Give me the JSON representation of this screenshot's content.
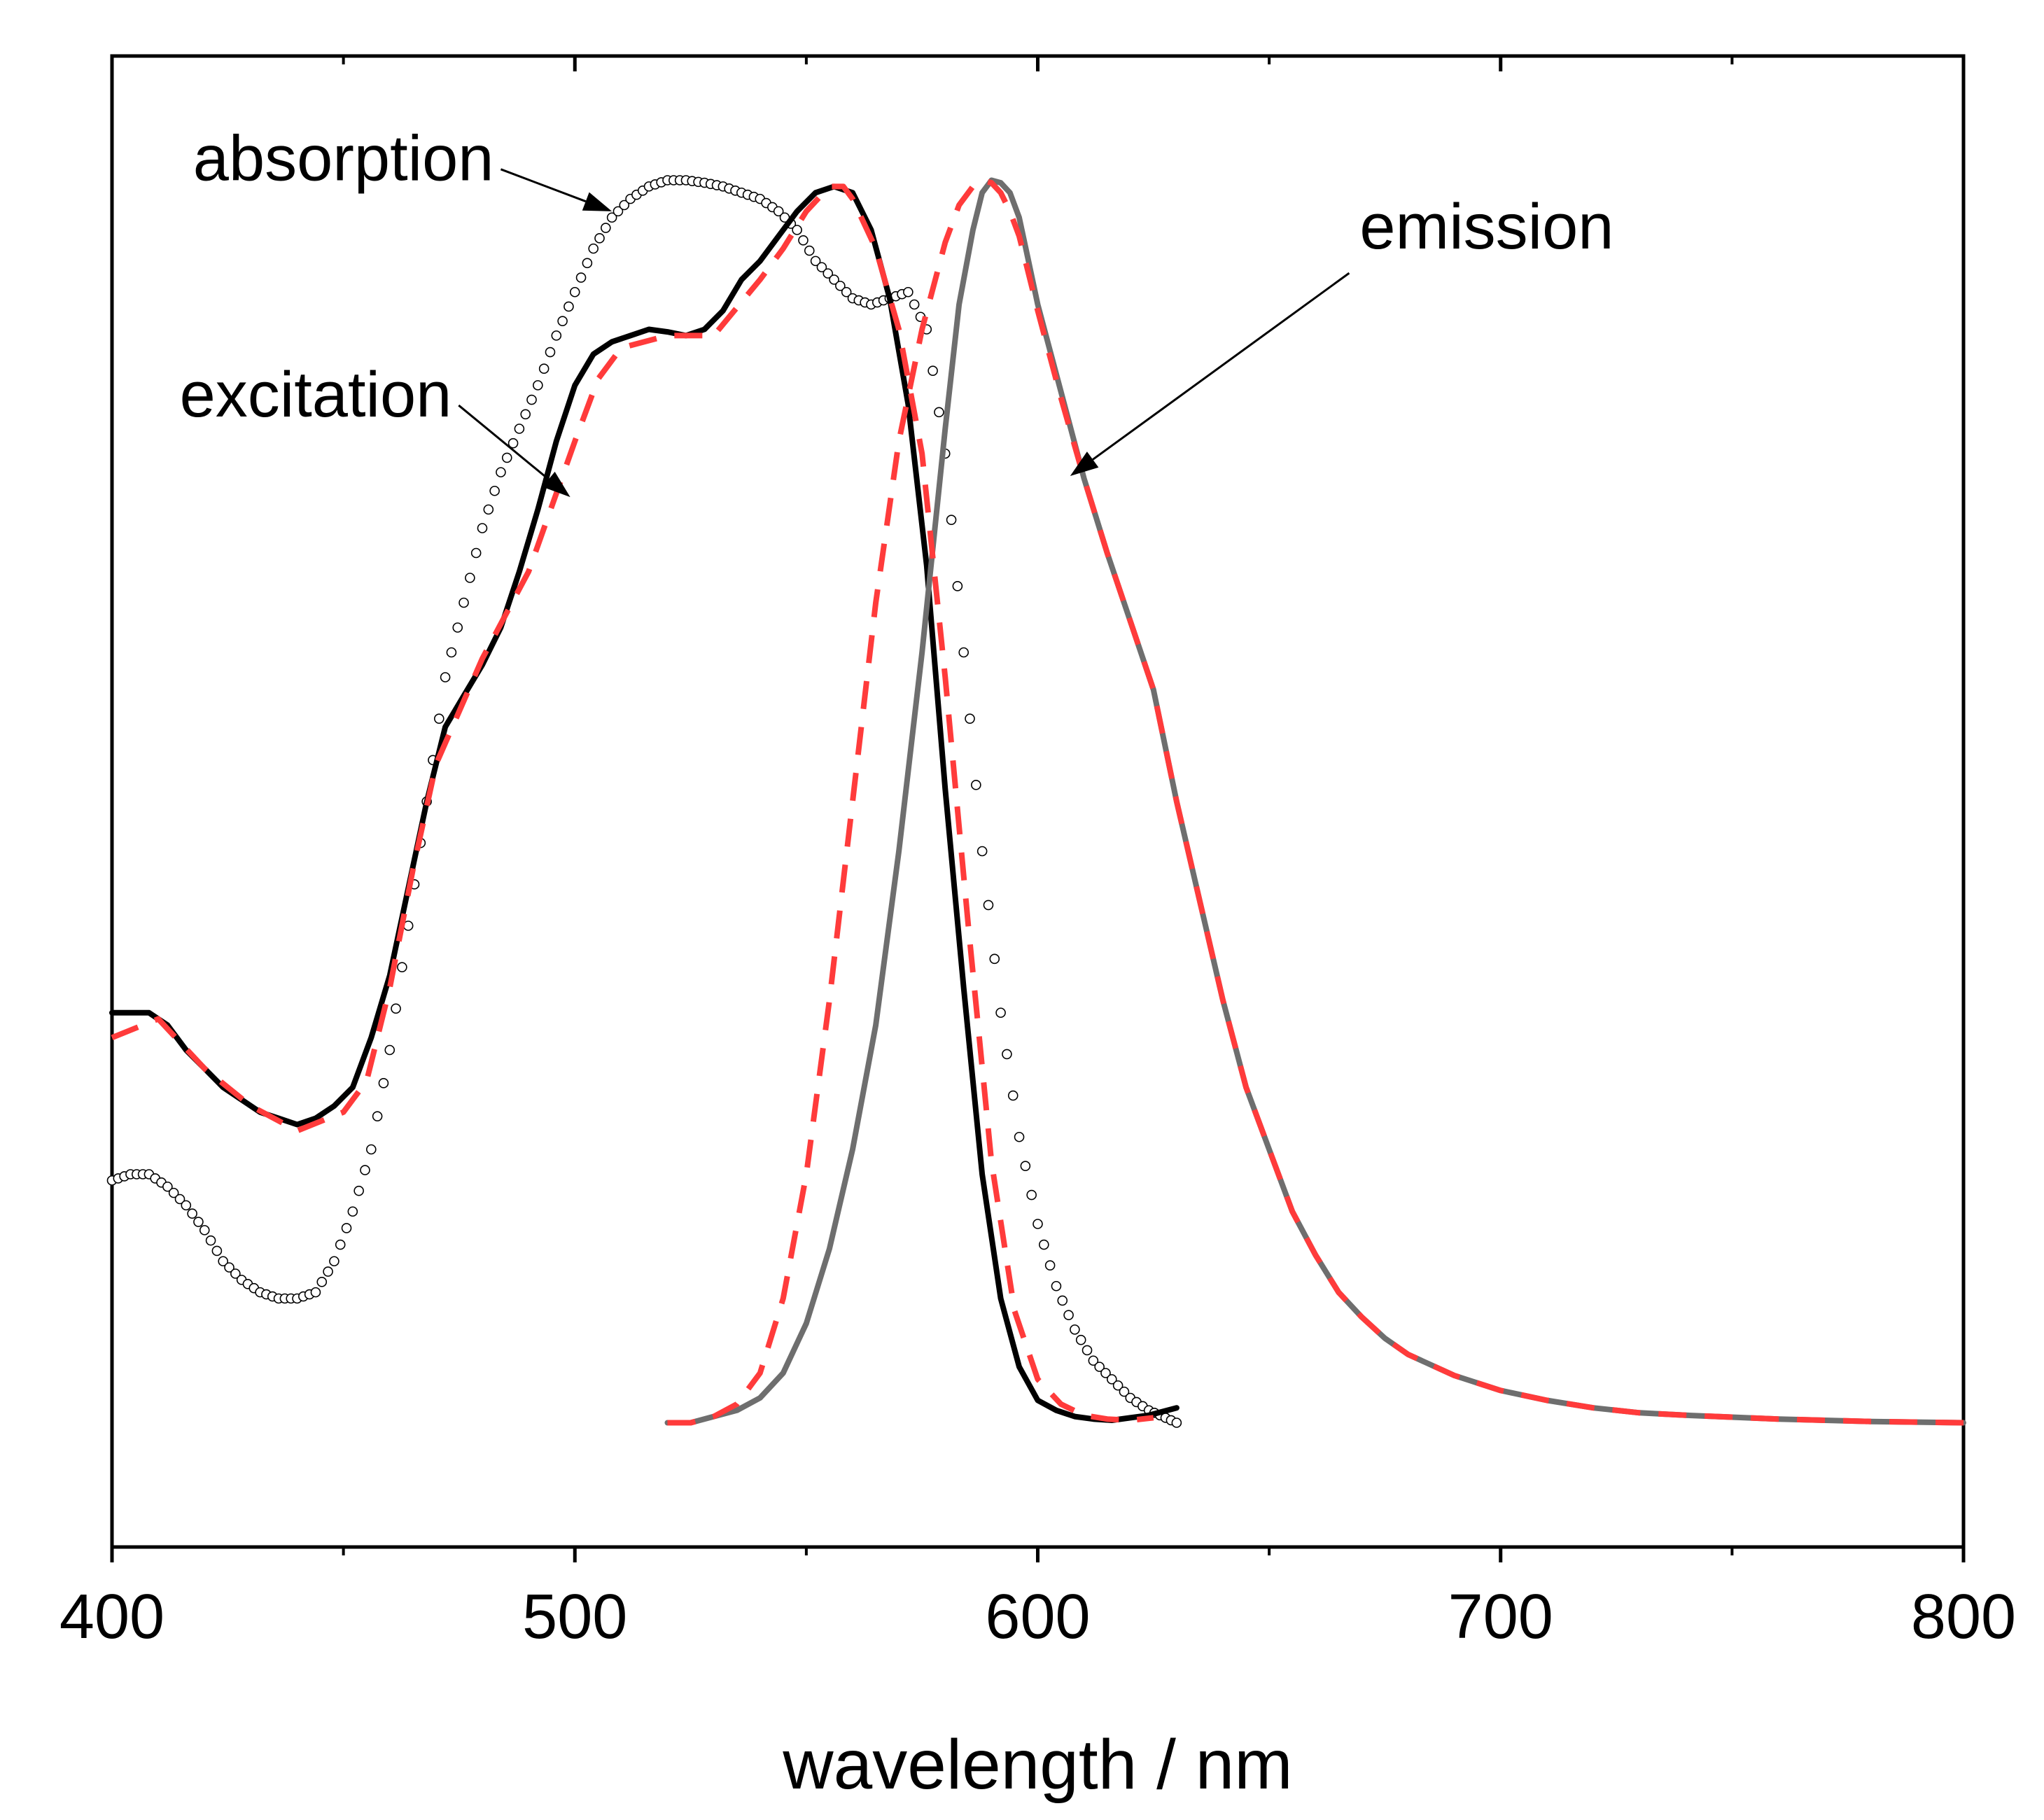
{
  "chart_data": {
    "type": "line",
    "xlabel": "wavelength / nm",
    "ylabel": "",
    "xlim": [
      400,
      800
    ],
    "ylim": [
      -0.1,
      1.1
    ],
    "x_ticks": [
      400,
      500,
      600,
      700,
      800
    ],
    "x_minor_ticks": [
      450,
      550,
      650,
      750
    ],
    "grid": false,
    "legend": "none",
    "annotations": [
      {
        "text": "absorption",
        "series": "absorption",
        "text_at": [
          450,
          1.0
        ],
        "arrow_to": [
          508,
          0.975
        ]
      },
      {
        "text": "excitation",
        "series": "excitation",
        "text_at": [
          444,
          0.81
        ],
        "arrow_to": [
          499,
          0.745
        ]
      },
      {
        "text": "emission",
        "series": "emission",
        "text_at": [
          697,
          0.945
        ],
        "arrow_to": [
          607,
          0.762
        ]
      }
    ],
    "series": [
      {
        "name": "absorption",
        "style": "open-circles",
        "color": "#000000",
        "x": [
          400,
          404,
          408,
          412,
          416,
          420,
          424,
          428,
          432,
          436,
          440,
          444,
          448,
          452,
          456,
          460,
          464,
          468,
          472,
          476,
          480,
          484,
          488,
          492,
          496,
          500,
          504,
          508,
          512,
          516,
          520,
          524,
          528,
          532,
          536,
          540,
          544,
          548,
          552,
          556,
          560,
          564,
          568,
          572,
          576,
          580,
          584,
          588,
          592,
          596,
          600,
          604,
          608,
          612,
          616,
          620,
          624,
          630
        ],
        "y": [
          0.195,
          0.2,
          0.2,
          0.19,
          0.175,
          0.155,
          0.13,
          0.115,
          0.105,
          0.1,
          0.1,
          0.105,
          0.13,
          0.17,
          0.22,
          0.3,
          0.4,
          0.5,
          0.6,
          0.66,
          0.72,
          0.765,
          0.8,
          0.835,
          0.875,
          0.91,
          0.945,
          0.97,
          0.985,
          0.995,
          1.0,
          1.0,
          0.998,
          0.995,
          0.99,
          0.985,
          0.975,
          0.96,
          0.935,
          0.92,
          0.905,
          0.9,
          0.905,
          0.91,
          0.88,
          0.78,
          0.62,
          0.46,
          0.33,
          0.23,
          0.16,
          0.11,
          0.075,
          0.05,
          0.035,
          0.02,
          0.01,
          0.0
        ]
      },
      {
        "name": "excitation",
        "style": "solid",
        "color": "#000000",
        "x": [
          400,
          404,
          408,
          412,
          416,
          420,
          424,
          428,
          432,
          436,
          440,
          444,
          448,
          452,
          456,
          460,
          464,
          468,
          472,
          476,
          480,
          484,
          488,
          492,
          496,
          500,
          504,
          508,
          512,
          516,
          520,
          524,
          528,
          532,
          536,
          540,
          544,
          548,
          552,
          556,
          560,
          564,
          568,
          572,
          576,
          580,
          584,
          588,
          592,
          596,
          600,
          604,
          608,
          612,
          616,
          620,
          624,
          630
        ],
        "y": [
          0.33,
          0.33,
          0.33,
          0.32,
          0.3,
          0.285,
          0.27,
          0.26,
          0.25,
          0.245,
          0.24,
          0.245,
          0.255,
          0.27,
          0.31,
          0.36,
          0.43,
          0.5,
          0.56,
          0.585,
          0.61,
          0.64,
          0.685,
          0.735,
          0.79,
          0.835,
          0.86,
          0.87,
          0.875,
          0.88,
          0.878,
          0.875,
          0.88,
          0.895,
          0.92,
          0.935,
          0.955,
          0.975,
          0.99,
          0.995,
          0.99,
          0.96,
          0.905,
          0.82,
          0.69,
          0.51,
          0.35,
          0.2,
          0.1,
          0.045,
          0.018,
          0.01,
          0.005,
          0.003,
          0.002,
          0.004,
          0.006,
          0.012
        ]
      },
      {
        "name": "excitation-fit",
        "style": "dashed",
        "color": "#ff3b3b",
        "x": [
          400,
          410,
          420,
          430,
          440,
          450,
          455,
          460,
          465,
          470,
          480,
          490,
          500,
          505,
          510,
          520,
          530,
          540,
          545,
          550,
          555,
          558,
          560,
          565,
          570,
          575,
          580,
          585,
          590,
          595,
          600,
          605,
          610,
          615,
          620,
          625
        ],
        "y": [
          0.31,
          0.325,
          0.285,
          0.255,
          0.235,
          0.25,
          0.275,
          0.35,
          0.445,
          0.53,
          0.615,
          0.685,
          0.79,
          0.84,
          0.865,
          0.875,
          0.875,
          0.92,
          0.945,
          0.975,
          0.995,
          0.995,
          0.985,
          0.945,
          0.88,
          0.78,
          0.6,
          0.4,
          0.21,
          0.09,
          0.035,
          0.015,
          0.006,
          0.003,
          0.002,
          0.004
        ]
      },
      {
        "name": "emission",
        "style": "solid",
        "color": "#6e6e6e",
        "x": [
          520,
          525,
          530,
          535,
          540,
          545,
          550,
          555,
          560,
          565,
          570,
          575,
          580,
          583,
          586,
          588,
          590,
          592,
          594,
          596,
          598,
          600,
          605,
          610,
          615,
          620,
          625,
          630,
          635,
          640,
          645,
          650,
          655,
          660,
          665,
          670,
          675,
          680,
          690,
          700,
          710,
          720,
          730,
          740,
          760,
          780,
          800
        ],
        "y": [
          0.0,
          0.0,
          0.005,
          0.01,
          0.02,
          0.04,
          0.08,
          0.14,
          0.22,
          0.32,
          0.46,
          0.62,
          0.8,
          0.9,
          0.96,
          0.99,
          1.0,
          0.998,
          0.99,
          0.97,
          0.935,
          0.9,
          0.83,
          0.76,
          0.7,
          0.645,
          0.59,
          0.5,
          0.42,
          0.34,
          0.27,
          0.22,
          0.17,
          0.135,
          0.105,
          0.085,
          0.068,
          0.055,
          0.038,
          0.026,
          0.018,
          0.012,
          0.008,
          0.006,
          0.003,
          0.001,
          0.0
        ]
      },
      {
        "name": "emission-fit",
        "style": "dashed",
        "color": "#ff3b3b",
        "x": [
          520,
          525,
          530,
          535,
          540,
          545,
          550,
          555,
          560,
          565,
          570,
          575,
          580,
          583,
          586,
          588,
          590,
          592,
          594,
          596,
          598,
          600,
          605,
          610,
          615,
          620,
          625,
          630,
          635,
          640,
          645,
          650,
          655,
          660,
          665,
          670,
          675,
          680,
          690,
          700,
          710,
          720,
          730,
          740,
          760,
          780,
          800
        ],
        "y": [
          0.0,
          0.0,
          0.005,
          0.015,
          0.04,
          0.1,
          0.2,
          0.34,
          0.5,
          0.66,
          0.79,
          0.88,
          0.95,
          0.98,
          0.995,
          1.0,
          0.998,
          0.99,
          0.975,
          0.955,
          0.925,
          0.895,
          0.825,
          0.76,
          0.7,
          0.645,
          0.59,
          0.5,
          0.42,
          0.34,
          0.27,
          0.22,
          0.17,
          0.135,
          0.105,
          0.085,
          0.068,
          0.055,
          0.038,
          0.026,
          0.018,
          0.012,
          0.008,
          0.006,
          0.003,
          0.001,
          0.0
        ]
      }
    ]
  }
}
